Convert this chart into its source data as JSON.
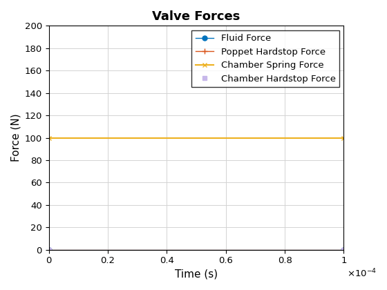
{
  "title": "Valve Forces",
  "xlabel": "Time (s)",
  "ylabel": "Force (N)",
  "xlim": [
    0,
    0.0001
  ],
  "ylim": [
    0,
    200
  ],
  "xticks": [
    0,
    2e-05,
    4e-05,
    6e-05,
    8e-05,
    0.0001
  ],
  "xtick_labels": [
    "0",
    "0.2",
    "0.4",
    "0.6",
    "0.8",
    "1"
  ],
  "yticks": [
    0,
    20,
    40,
    60,
    80,
    100,
    120,
    140,
    160,
    180,
    200
  ],
  "lines": [
    {
      "label": "Fluid Force",
      "x": [
        0,
        0.0001
      ],
      "y": [
        0,
        0
      ],
      "color": "#0072BD",
      "linestyle": "-",
      "marker": "o",
      "markersize": 5,
      "linewidth": 1.0
    },
    {
      "label": "Poppet Hardstop Force",
      "x": [
        0,
        0.0001
      ],
      "y": [
        0,
        0
      ],
      "color": "#D95319",
      "linestyle": "-",
      "marker": "+",
      "markersize": 6,
      "linewidth": 1.0
    },
    {
      "label": "Chamber Spring Force",
      "x": [
        0,
        0.0001
      ],
      "y": [
        100,
        100
      ],
      "color": "#EDB120",
      "linestyle": "-",
      "marker": "x",
      "markersize": 5,
      "linewidth": 1.5
    },
    {
      "label": "Chamber Hardstop Force",
      "x": [
        0,
        0.0001
      ],
      "y": [
        0,
        0
      ],
      "color": "#C7B8EA",
      "linestyle": "none",
      "marker": "s",
      "markersize": 5,
      "linewidth": 1.0
    }
  ],
  "sci_notation_label": "$\\times10^{-4}$",
  "legend_loc": "upper right",
  "grid": true,
  "background_color": "#ffffff",
  "title_fontsize": 13,
  "label_fontsize": 11
}
